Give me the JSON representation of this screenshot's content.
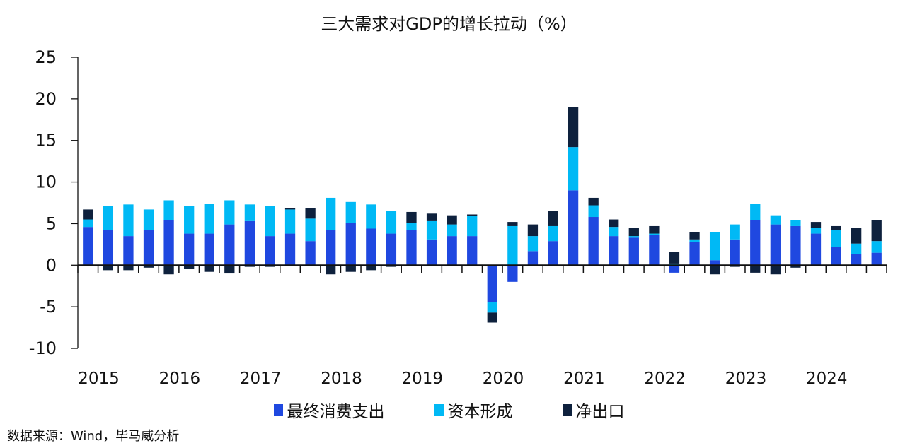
{
  "chart_data": {
    "type": "bar",
    "stacked": true,
    "title": "三大需求对GDP的增长拉动（%）",
    "xlabel": "",
    "ylabel": "",
    "ylim": [
      -10,
      25
    ],
    "yticks": [
      25,
      20,
      15,
      10,
      5,
      0,
      -5,
      -10
    ],
    "year_labels": [
      "2015",
      "2016",
      "2017",
      "2018",
      "2019",
      "2020",
      "2021",
      "2022",
      "2023",
      "2024"
    ],
    "categories": [
      "2015Q1",
      "2015Q2",
      "2015Q3",
      "2015Q4",
      "2016Q1",
      "2016Q2",
      "2016Q3",
      "2016Q4",
      "2017Q1",
      "2017Q2",
      "2017Q3",
      "2017Q4",
      "2018Q1",
      "2018Q2",
      "2018Q3",
      "2018Q4",
      "2019Q1",
      "2019Q2",
      "2019Q3",
      "2019Q4",
      "2020Q1",
      "2020Q2",
      "2020Q3",
      "2020Q4",
      "2021Q1",
      "2021Q2",
      "2021Q3",
      "2021Q4",
      "2022Q1",
      "2022Q2",
      "2022Q3",
      "2022Q4",
      "2023Q1",
      "2023Q2",
      "2023Q3",
      "2023Q4",
      "2024Q1",
      "2024Q2",
      "2024Q3",
      "2024Q4"
    ],
    "series": [
      {
        "name": "最终消费支出",
        "color": "#1f48e0",
        "values": [
          4.6,
          4.2,
          3.5,
          4.2,
          5.4,
          3.8,
          3.8,
          4.9,
          5.3,
          3.5,
          3.8,
          2.9,
          4.2,
          5.1,
          4.4,
          3.8,
          4.2,
          3.1,
          3.5,
          3.5,
          -4.4,
          -2.0,
          1.7,
          2.9,
          9.0,
          5.8,
          3.5,
          3.3,
          3.6,
          -0.9,
          2.8,
          0.6,
          3.1,
          5.4,
          4.9,
          4.7,
          3.8,
          2.2,
          1.3,
          1.5
        ]
      },
      {
        "name": "资本形成",
        "color": "#00b9f5",
        "values": [
          0.9,
          2.9,
          3.8,
          2.5,
          2.4,
          3.3,
          3.6,
          2.9,
          2.0,
          3.6,
          2.9,
          2.7,
          3.9,
          2.5,
          2.9,
          2.7,
          0.9,
          2.2,
          1.4,
          2.4,
          -1.3,
          4.7,
          1.8,
          1.8,
          5.2,
          1.4,
          1.1,
          0.2,
          0.2,
          0.2,
          0.3,
          3.4,
          1.8,
          2.0,
          1.1,
          0.7,
          0.7,
          2.0,
          1.3,
          1.4
        ]
      },
      {
        "name": "净出口",
        "color": "#0e213d",
        "values": [
          1.2,
          -0.6,
          -0.6,
          -0.3,
          -1.1,
          -0.4,
          -0.8,
          -1.0,
          -0.2,
          -0.2,
          0.2,
          1.3,
          -1.1,
          -0.8,
          -0.6,
          -0.2,
          1.3,
          0.9,
          1.1,
          0.2,
          -1.2,
          0.5,
          1.4,
          1.8,
          4.8,
          0.9,
          0.9,
          1.0,
          0.9,
          1.4,
          0.9,
          -1.1,
          -0.2,
          -0.9,
          -1.1,
          -0.3,
          0.7,
          0.5,
          1.9,
          2.5
        ]
      }
    ],
    "legend": "bottom",
    "grid": false
  },
  "source_note": "数据来源：Wind，毕马威分析"
}
